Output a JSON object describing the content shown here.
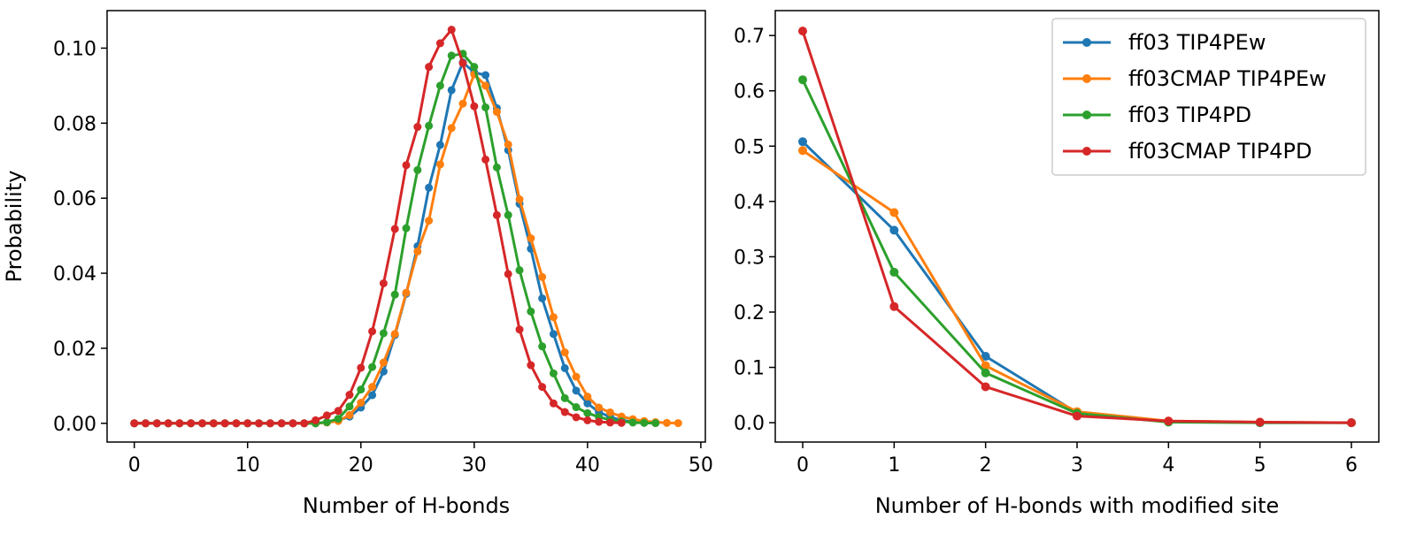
{
  "chart_data": [
    {
      "type": "line",
      "xlabel": "Number of H-bonds",
      "ylabel": "Probability",
      "xlim": [
        -2.4,
        50.4
      ],
      "ylim": [
        -0.005,
        0.11
      ],
      "xticks": [
        0,
        10,
        20,
        30,
        40,
        50
      ],
      "yticks": [
        0.0,
        0.02,
        0.04,
        0.06,
        0.08,
        0.1
      ],
      "ytick_labels": [
        "0.00",
        "0.02",
        "0.04",
        "0.06",
        "0.08",
        "0.10"
      ],
      "grid": false,
      "series": [
        {
          "name": "ff03 TIP4PEw",
          "color": "#1f77b4",
          "x": [
            0,
            1,
            2,
            3,
            4,
            5,
            6,
            7,
            8,
            9,
            10,
            11,
            12,
            13,
            14,
            15,
            16,
            17,
            18,
            19,
            20,
            21,
            22,
            23,
            24,
            25,
            26,
            27,
            28,
            29,
            30,
            31,
            32,
            33,
            34,
            35,
            36,
            37,
            38,
            39,
            40,
            41,
            42,
            43,
            44,
            45,
            46
          ],
          "y": [
            0,
            0,
            0,
            0,
            0,
            0,
            0,
            0,
            0,
            0,
            0,
            0,
            0,
            0,
            0,
            0,
            0,
            0.0003,
            0.0008,
            0.0018,
            0.0042,
            0.0075,
            0.0138,
            0.0235,
            0.0345,
            0.0472,
            0.0628,
            0.0742,
            0.0888,
            0.0962,
            0.0935,
            0.0928,
            0.084,
            0.0728,
            0.0585,
            0.0465,
            0.0333,
            0.0238,
            0.0147,
            0.0087,
            0.0053,
            0.003,
            0.0017,
            0.0008,
            0.0004,
            0.0002,
            0.0001
          ]
        },
        {
          "name": "ff03CMAP TIP4PEw",
          "color": "#ff7f0e",
          "x": [
            0,
            1,
            2,
            3,
            4,
            5,
            6,
            7,
            8,
            9,
            10,
            11,
            12,
            13,
            14,
            15,
            16,
            17,
            18,
            19,
            20,
            21,
            22,
            23,
            24,
            25,
            26,
            27,
            28,
            29,
            30,
            31,
            32,
            33,
            34,
            35,
            36,
            37,
            38,
            39,
            40,
            41,
            42,
            43,
            44,
            45,
            46,
            47,
            48
          ],
          "y": [
            0,
            0,
            0,
            0,
            0,
            0,
            0,
            0,
            0,
            0,
            0,
            0,
            0,
            0,
            0,
            0,
            0,
            0.0002,
            0.0006,
            0.0022,
            0.0055,
            0.0097,
            0.0162,
            0.0238,
            0.0348,
            0.0458,
            0.054,
            0.069,
            0.0787,
            0.0852,
            0.093,
            0.09,
            0.083,
            0.0743,
            0.0597,
            0.0493,
            0.039,
            0.0283,
            0.0189,
            0.0124,
            0.0071,
            0.0042,
            0.0029,
            0.0018,
            0.0011,
            0.0006,
            0.0003,
            0.0001,
            5e-05
          ]
        },
        {
          "name": "ff03 TIP4PD",
          "color": "#2ca02c",
          "x": [
            0,
            1,
            2,
            3,
            4,
            5,
            6,
            7,
            8,
            9,
            10,
            11,
            12,
            13,
            14,
            15,
            16,
            17,
            18,
            19,
            20,
            21,
            22,
            23,
            24,
            25,
            26,
            27,
            28,
            29,
            30,
            31,
            32,
            33,
            34,
            35,
            36,
            37,
            38,
            39,
            40,
            41,
            42,
            43,
            44,
            45,
            46
          ],
          "y": [
            0,
            0,
            0,
            0,
            0,
            0,
            0,
            0,
            0,
            0,
            0,
            0,
            0,
            0,
            0,
            0,
            0,
            0.0003,
            0.0012,
            0.0045,
            0.009,
            0.015,
            0.024,
            0.0343,
            0.052,
            0.0675,
            0.0793,
            0.09,
            0.098,
            0.0985,
            0.095,
            0.0842,
            0.0682,
            0.0555,
            0.0408,
            0.0298,
            0.0205,
            0.0133,
            0.0067,
            0.0043,
            0.0027,
            0.0017,
            0.0009,
            0.0005,
            0.0002,
            0.0001,
            5e-05
          ]
        },
        {
          "name": "ff03CMAP TIP4PD",
          "color": "#d62728",
          "x": [
            0,
            1,
            2,
            3,
            4,
            5,
            6,
            7,
            8,
            9,
            10,
            11,
            12,
            13,
            14,
            15,
            16,
            17,
            18,
            19,
            20,
            21,
            22,
            23,
            24,
            25,
            26,
            27,
            28,
            29,
            30,
            31,
            32,
            33,
            34,
            35,
            36,
            37,
            38,
            39,
            40,
            41,
            42,
            43
          ],
          "y": [
            0,
            0,
            0,
            0,
            0,
            0,
            0,
            0,
            0,
            0,
            0,
            0,
            0,
            0,
            0,
            0,
            0.0008,
            0.0021,
            0.0033,
            0.0076,
            0.0148,
            0.0245,
            0.0373,
            0.0518,
            0.0688,
            0.079,
            0.095,
            0.1013,
            0.1049,
            0.096,
            0.0845,
            0.0703,
            0.0555,
            0.0398,
            0.025,
            0.0155,
            0.0097,
            0.0053,
            0.003,
            0.0016,
            0.0008,
            0.0004,
            0.0002,
            0.0001
          ]
        }
      ]
    },
    {
      "type": "line",
      "xlabel": "Number of H-bonds with modified site",
      "ylabel": "",
      "xlim": [
        -0.3,
        6.3
      ],
      "ylim": [
        -0.035,
        0.745
      ],
      "xticks": [
        0,
        1,
        2,
        3,
        4,
        5,
        6
      ],
      "yticks": [
        0.0,
        0.1,
        0.2,
        0.3,
        0.4,
        0.5,
        0.6,
        0.7
      ],
      "ytick_labels": [
        "0.0",
        "0.1",
        "0.2",
        "0.3",
        "0.4",
        "0.5",
        "0.6",
        "0.7"
      ],
      "grid": false,
      "legend": "top-right",
      "series": [
        {
          "name": "ff03 TIP4PEw",
          "color": "#1f77b4",
          "x": [
            0,
            1,
            2,
            3,
            4,
            5,
            6
          ],
          "y": [
            0.508,
            0.348,
            0.12,
            0.018,
            0.002,
            0.0,
            0.0
          ]
        },
        {
          "name": "ff03CMAP TIP4PEw",
          "color": "#ff7f0e",
          "x": [
            0,
            1,
            2,
            3,
            4,
            5,
            6
          ],
          "y": [
            0.492,
            0.38,
            0.103,
            0.02,
            0.003,
            0.001,
            0.0
          ]
        },
        {
          "name": "ff03 TIP4PD",
          "color": "#2ca02c",
          "x": [
            0,
            1,
            2,
            3,
            4,
            5,
            6
          ],
          "y": [
            0.62,
            0.272,
            0.09,
            0.017,
            0.001,
            0.0,
            0.0
          ]
        },
        {
          "name": "ff03CMAP TIP4PD",
          "color": "#d62728",
          "x": [
            0,
            1,
            2,
            3,
            4,
            5,
            6
          ],
          "y": [
            0.708,
            0.21,
            0.065,
            0.012,
            0.003,
            0.001,
            0.0
          ]
        }
      ]
    }
  ]
}
